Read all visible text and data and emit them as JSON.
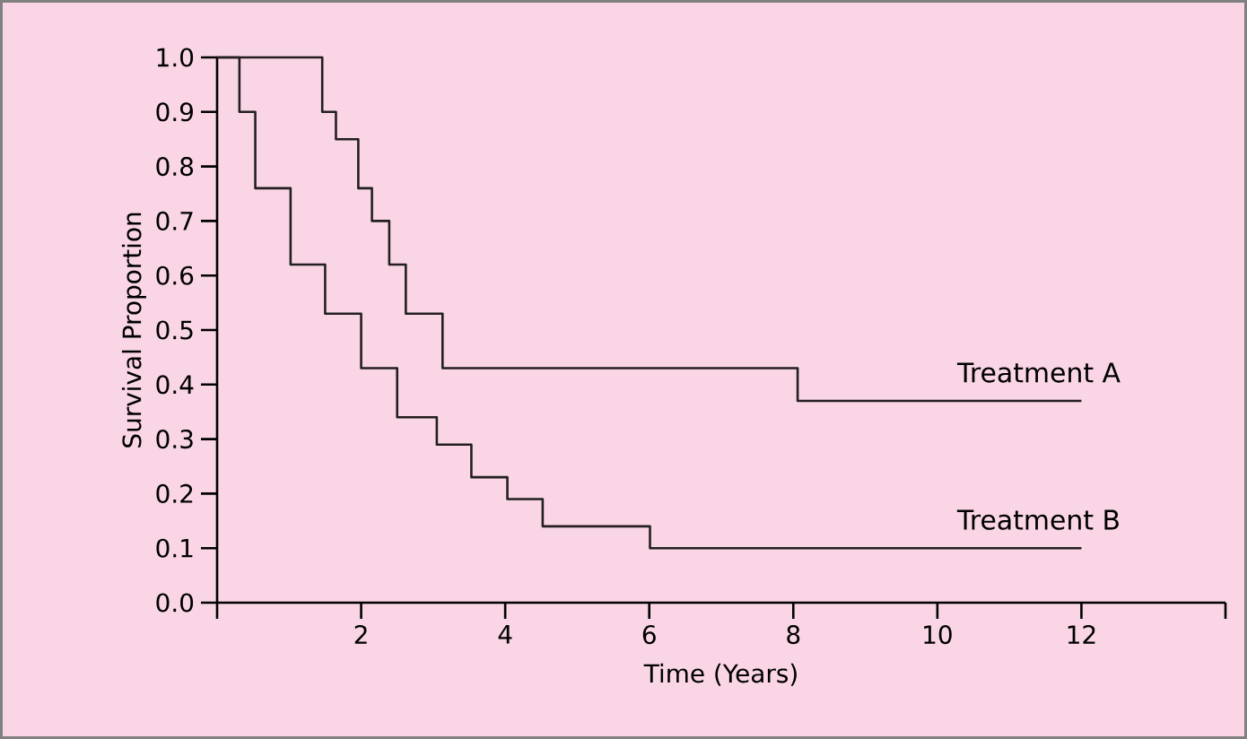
{
  "chart_data": {
    "type": "step",
    "xlabel": "Time (Years)",
    "ylabel": "Survival Proportion",
    "xlim": [
      0,
      14
    ],
    "ylim": [
      0,
      1.0
    ],
    "xticks": [
      {
        "value": 0,
        "label": null
      },
      2,
      4,
      6,
      8,
      10,
      12,
      {
        "value": 14,
        "label": null
      }
    ],
    "yticks": [
      {
        "value": 0,
        "label": "0.0"
      },
      0.1,
      0.2,
      0.3,
      0.4,
      0.5,
      0.6,
      0.7,
      0.8,
      0.9,
      {
        "value": 1,
        "label": "1.0"
      }
    ],
    "grid": false,
    "legend": false,
    "marker": "none",
    "line_style": "solid",
    "series": [
      {
        "name": "Treatment A",
        "color": "#231f20",
        "x": [
          0,
          1.46,
          1.65,
          1.96,
          2.15,
          2.39,
          2.62,
          3.13,
          8.06,
          12
        ],
        "values": [
          1,
          0.9,
          0.85,
          0.76,
          0.7,
          0.62,
          0.53,
          0.43,
          0.37,
          0.37
        ]
      },
      {
        "name": "Treatment B",
        "color": "#231f20",
        "x": [
          0,
          0.31,
          0.53,
          1.02,
          1.5,
          2.0,
          2.5,
          3.05,
          3.53,
          4.03,
          4.52,
          6.01,
          12
        ],
        "values": [
          1,
          0.9,
          0.76,
          0.62,
          0.53,
          0.43,
          0.34,
          0.29,
          0.23,
          0.19,
          0.14,
          0.1,
          0.1
        ]
      }
    ]
  }
}
